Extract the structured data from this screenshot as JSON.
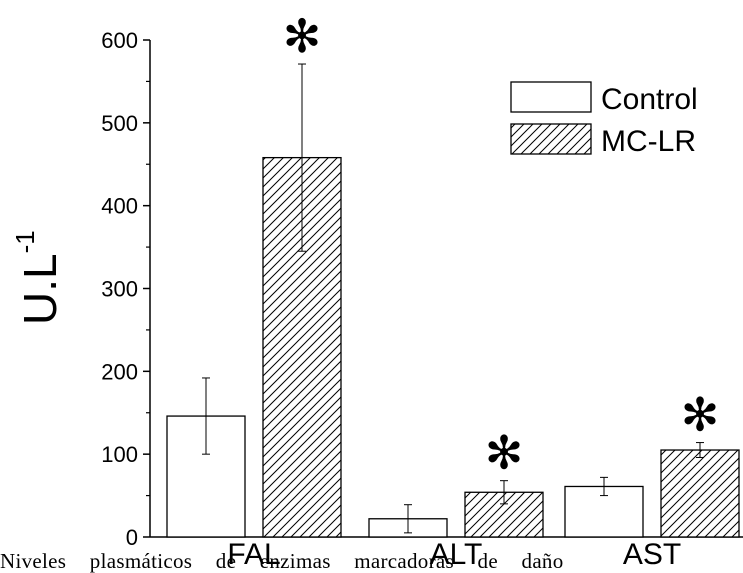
{
  "chart_data": {
    "type": "bar",
    "categories": [
      "FAL",
      "ALT",
      "AST"
    ],
    "series": [
      {
        "name": "Control",
        "values": [
          146,
          22,
          61
        ],
        "errors": [
          46,
          17,
          11
        ],
        "pattern": "none"
      },
      {
        "name": "MC-LR",
        "values": [
          458,
          54,
          105
        ],
        "errors": [
          113,
          14,
          9
        ],
        "pattern": "hatch"
      }
    ],
    "significance": [
      {
        "category": "FAL",
        "series": "MC-LR",
        "marker": "✻"
      },
      {
        "category": "ALT",
        "series": "MC-LR",
        "marker": "✻"
      },
      {
        "category": "AST",
        "series": "MC-LR",
        "marker": "✻"
      }
    ],
    "ylabel": "U.L",
    "ylabel_superscript": "-1",
    "ylim": [
      0,
      600
    ],
    "yticks": [
      0,
      100,
      200,
      300,
      400,
      500,
      600
    ],
    "legend_position": "top-right",
    "grid": false
  },
  "caption": "Niveles plasmáticos de enzimas marcadoras de daño"
}
